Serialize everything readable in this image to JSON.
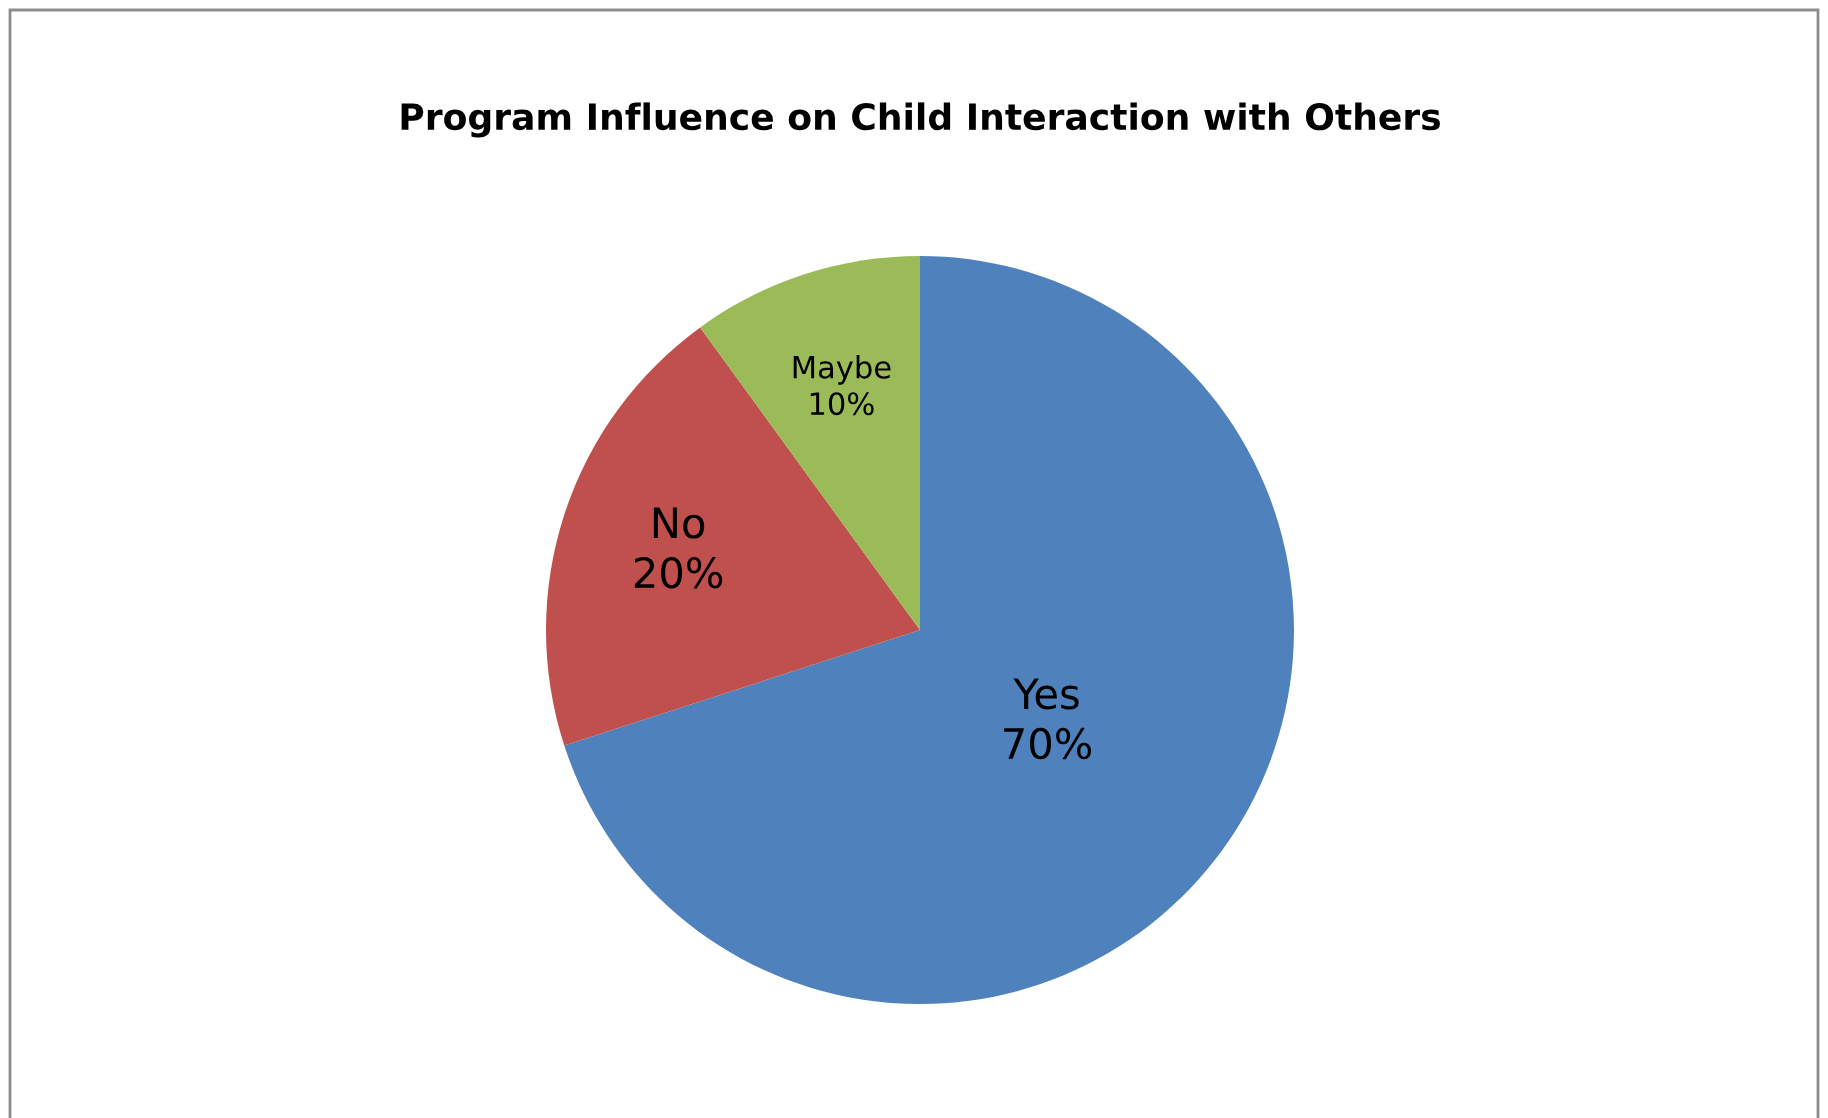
{
  "chart_data": {
    "type": "pie",
    "title": "Program Influence on Child Interaction with Others",
    "categories": [
      "Yes",
      "No",
      "Maybe"
    ],
    "values": [
      70,
      20,
      10
    ],
    "colors": [
      "#4f81bd",
      "#c0504d",
      "#9bbb59"
    ],
    "value_labels": [
      "70%",
      "20%",
      "10%"
    ]
  }
}
